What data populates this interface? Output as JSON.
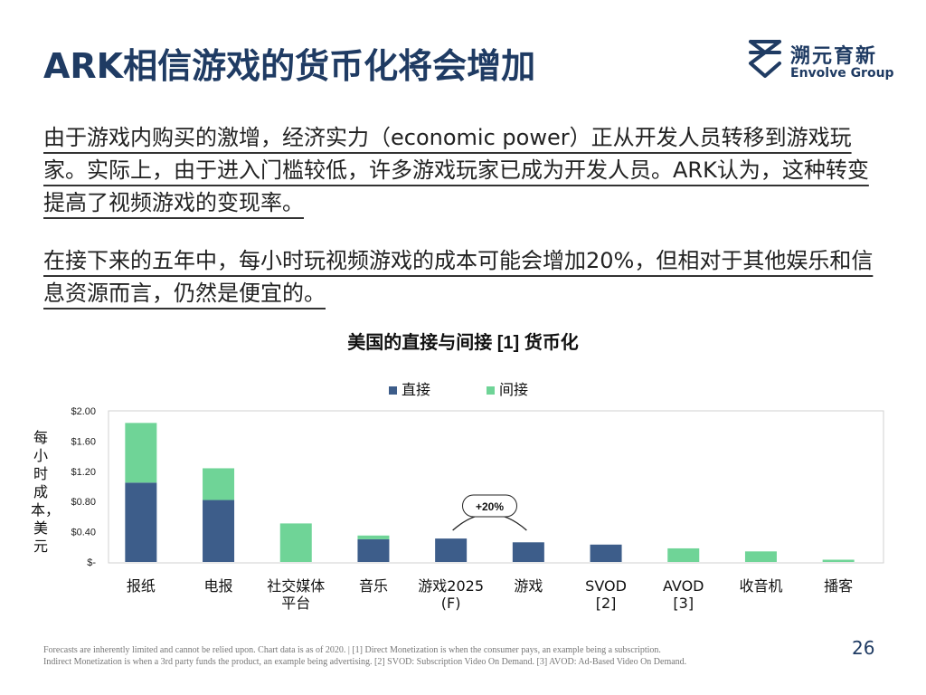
{
  "slide": {
    "title": "ARK相信游戏的货币化将会增加",
    "logo_cn": "溯元育新",
    "logo_en": "Envolve Group",
    "paragraph1": "由于游戏内购买的激增，经济实力（economic power）正从开发人员转移到游戏玩家。实际上，由于进入门槛较低，许多游戏玩家已成为开发人员。ARK认为，这种转变提高了视频游戏的变现率。",
    "paragraph2": "在接下来的五年中，每小时玩视频游戏的成本可能会增加20%，但相对于其他娱乐和信息资源而言，仍然是便宜的。",
    "footnote_line1": "Forecasts are inherently limited and cannot be relied upon. Chart data is as of 2020. | [1] Direct Monetization is when the consumer pays, an example being a subscription.",
    "footnote_line2": "Indirect Monetization is when a 3rd party funds the product, an example being advertising. [2] SVOD: Subscription Video On Demand. [3] AVOD: Ad-Based Video On Demand.",
    "page_number": "26"
  },
  "chart_data": {
    "type": "bar",
    "stacked": true,
    "title": "美国的直接与间接 [1] 货币化",
    "ylabel": "每小时成本，美元",
    "xlabel": "",
    "ylim": [
      0,
      2.0
    ],
    "yticks": [
      {
        "value": 2.0,
        "label": "$2.00"
      },
      {
        "value": 1.6,
        "label": "$1.60"
      },
      {
        "value": 1.2,
        "label": "$1.20"
      },
      {
        "value": 0.8,
        "label": "$0.80"
      },
      {
        "value": 0.4,
        "label": "$0.40"
      },
      {
        "value": 0,
        "label": "$-"
      }
    ],
    "categories": [
      [
        "报纸"
      ],
      [
        "电报"
      ],
      [
        "社交媒体",
        "平台"
      ],
      [
        "音乐"
      ],
      [
        "游戏2025",
        "(F)"
      ],
      [
        "游戏"
      ],
      [
        "SVOD",
        "[2]"
      ],
      [
        "AVOD",
        "[3]"
      ],
      [
        "收音机"
      ],
      [
        "播客"
      ]
    ],
    "series": [
      {
        "name": "直接",
        "color": "#3d5d8a",
        "values": [
          1.05,
          0.82,
          0,
          0.3,
          0.31,
          0.26,
          0.23,
          0,
          0,
          0
        ]
      },
      {
        "name": "间接",
        "color": "#6fd497",
        "values": [
          0.79,
          0.42,
          0.51,
          0.05,
          0,
          0,
          0,
          0.18,
          0.14,
          0.03
        ]
      }
    ],
    "annotation": {
      "text": "+20%",
      "between": [
        4,
        5
      ]
    },
    "grid": false,
    "legend_position": "top"
  }
}
